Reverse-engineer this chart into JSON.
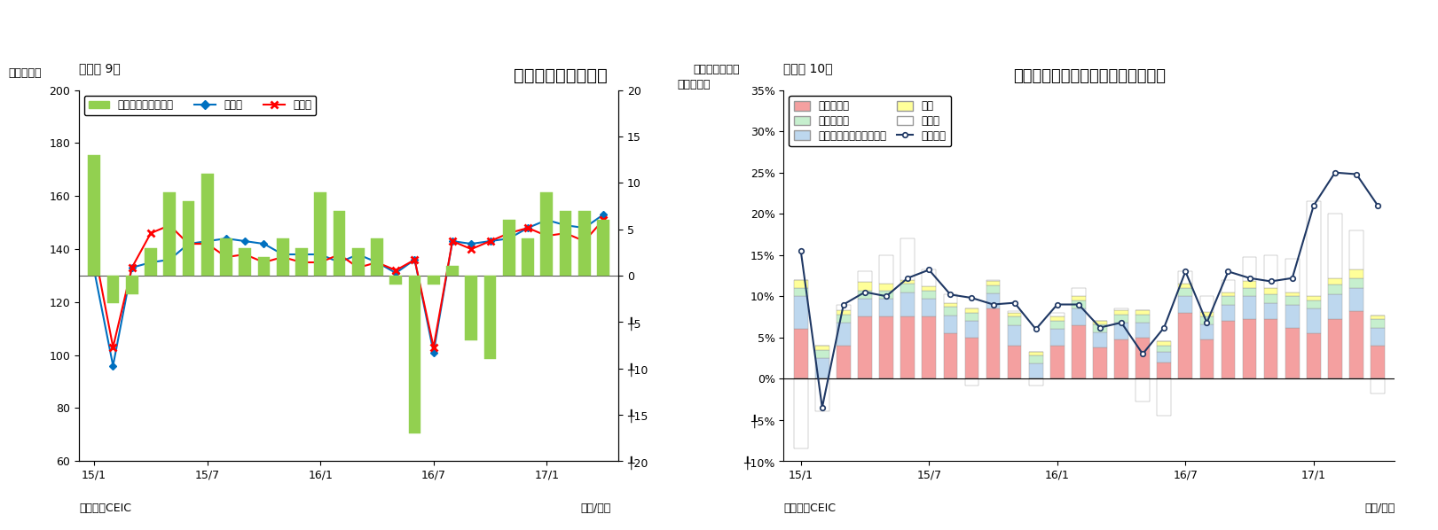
{
  "chart1": {
    "title": "ベトナムの貳易収支",
    "subtitle": "（図表 9）",
    "ylabel_left": "（億ドル）",
    "ylabel_right": "（億ドル）",
    "xlabel": "（年/月）",
    "source": "（資料）CEIC",
    "ylim_left": [
      60,
      200
    ],
    "ylim_right": [
      -20,
      20
    ],
    "yticks_left": [
      60,
      80,
      100,
      120,
      140,
      160,
      180,
      200
    ],
    "yticks_right": [
      20,
      15,
      10,
      5,
      0,
      -5,
      -10,
      -15,
      -20
    ],
    "ytick_labels_right": [
      "20",
      "15",
      "10",
      "5",
      "0",
      "╀5",
      "╀10",
      "╀15",
      "╀20"
    ],
    "xtick_labels": [
      "15/1",
      "15/7",
      "16/1",
      "16/7",
      "17/1"
    ],
    "export_data": [
      132,
      96,
      133,
      135,
      136,
      142,
      143,
      144,
      143,
      142,
      138,
      138,
      138,
      135,
      138,
      135,
      131,
      136,
      101,
      143,
      142,
      143,
      144,
      148,
      151,
      149,
      148,
      153
    ],
    "import_data": [
      140,
      103,
      133,
      146,
      149,
      142,
      142,
      137,
      138,
      135,
      137,
      135,
      135,
      138,
      133,
      135,
      132,
      136,
      103,
      143,
      140,
      143,
      146,
      148,
      145,
      146,
      143,
      151
    ],
    "trade_balance": [
      13,
      -3,
      -2,
      3,
      9,
      8,
      11,
      4,
      3,
      2,
      4,
      3,
      9,
      7,
      3,
      4,
      -1,
      -17,
      -1,
      1,
      -7,
      -9,
      6,
      4,
      9,
      7,
      7,
      6
    ],
    "bar_color": "#92D050",
    "export_color": "#0070C0",
    "import_color": "#FF0000",
    "legend_bar": "貳易収支（右目盛）",
    "legend_export": "輸出額",
    "legend_import": "輸入額"
  },
  "chart2": {
    "title": "ベトナム　輸出の伸び率（品目別）",
    "subtitle": "（図表 10）",
    "ylabel": "（前年同月比）",
    "xlabel": "（年/月）",
    "source": "（資料）CEIC",
    "ylim": [
      -0.1,
      0.35
    ],
    "yticks": [
      0.35,
      0.3,
      0.25,
      0.2,
      0.15,
      0.1,
      0.05,
      0.0,
      -0.05,
      -0.1
    ],
    "ytick_labels": [
      "35%",
      "30%",
      "25%",
      "20%",
      "15%",
      "10%",
      "5%",
      "0%",
      "╀5%",
      "╀10%"
    ],
    "xtick_labels": [
      "15/1",
      "15/7",
      "16/1",
      "16/7",
      "17/1"
    ],
    "categories": [
      "電話・部品",
      "コンピュータ・電子部品",
      "織物・衣類",
      "履物",
      "その他"
    ],
    "colors": [
      "#F4A0A0",
      "#BDD7EE",
      "#C6EFCE",
      "#FFFF99",
      "#FFFFFF"
    ],
    "edge_colors": [
      "#C00000",
      "#2E75B6",
      "#70AD47",
      "#BFBF00",
      "#7F7F7F"
    ],
    "phone_data": [
      0.06,
      0.0,
      0.04,
      0.075,
      0.075,
      0.075,
      0.075,
      0.055,
      0.05,
      0.085,
      0.04,
      0.0,
      0.04,
      0.065,
      0.038,
      0.048,
      0.05,
      0.02,
      0.08,
      0.048,
      0.07,
      0.072,
      0.072,
      0.062,
      0.055,
      0.072,
      0.082,
      0.04
    ],
    "computer_data": [
      0.04,
      0.025,
      0.028,
      0.022,
      0.022,
      0.03,
      0.022,
      0.022,
      0.02,
      0.018,
      0.025,
      0.018,
      0.02,
      0.02,
      0.018,
      0.02,
      0.018,
      0.012,
      0.02,
      0.018,
      0.02,
      0.028,
      0.02,
      0.028,
      0.03,
      0.03,
      0.028,
      0.022
    ],
    "textile_data": [
      0.01,
      0.01,
      0.01,
      0.01,
      0.01,
      0.01,
      0.01,
      0.01,
      0.01,
      0.01,
      0.01,
      0.01,
      0.01,
      0.01,
      0.01,
      0.01,
      0.01,
      0.008,
      0.01,
      0.01,
      0.01,
      0.01,
      0.01,
      0.01,
      0.01,
      0.012,
      0.012,
      0.01
    ],
    "shoes_data": [
      0.01,
      0.005,
      0.005,
      0.01,
      0.008,
      0.005,
      0.005,
      0.005,
      0.005,
      0.005,
      0.005,
      0.005,
      0.005,
      0.005,
      0.004,
      0.005,
      0.005,
      0.005,
      0.005,
      0.005,
      0.005,
      0.008,
      0.008,
      0.005,
      0.005,
      0.008,
      0.01,
      0.005
    ],
    "other_data": [
      -0.085,
      -0.04,
      0.007,
      0.013,
      0.035,
      0.05,
      0.02,
      0.01,
      -0.008,
      0.002,
      0.002,
      -0.008,
      0.005,
      0.01,
      0.0,
      0.002,
      -0.028,
      -0.045,
      0.015,
      0.019,
      0.015,
      0.03,
      0.04,
      0.04,
      0.115,
      0.078,
      0.048,
      -0.018
    ],
    "total_export": [
      0.155,
      -0.035,
      0.09,
      0.105,
      0.1,
      0.122,
      0.132,
      0.102,
      0.098,
      0.09,
      0.092,
      0.06,
      0.09,
      0.09,
      0.062,
      0.068,
      0.03,
      0.062,
      0.13,
      0.068,
      0.13,
      0.122,
      0.118,
      0.122,
      0.21,
      0.25,
      0.248,
      0.21
    ],
    "line_color": "#1F3864",
    "legend_line": "輸出合計",
    "n_months": 28
  }
}
